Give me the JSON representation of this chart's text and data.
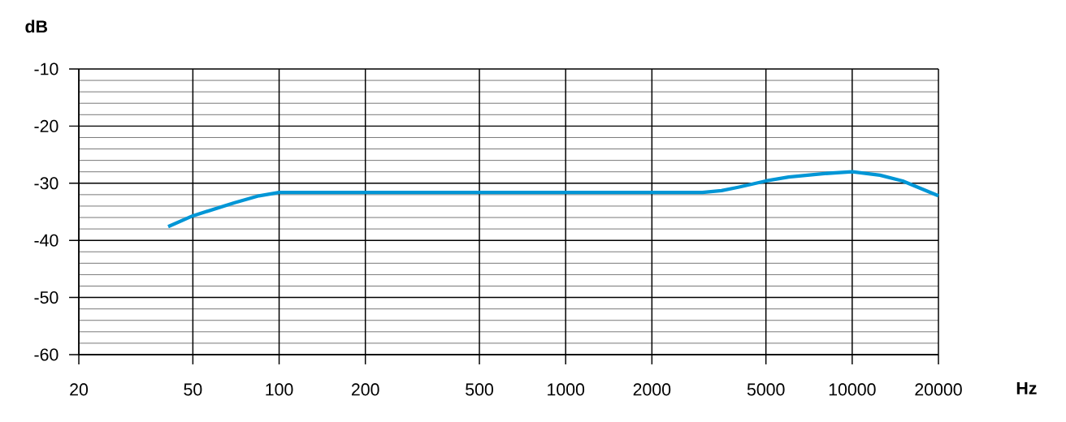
{
  "chart_data": {
    "type": "line",
    "xlabel": "Hz",
    "ylabel": "dB",
    "x": [
      41,
      50,
      70,
      85,
      100,
      3000,
      3500,
      4000,
      5000,
      6000,
      8000,
      10000,
      12500,
      15000,
      20000
    ],
    "series": [
      {
        "color": "#0096d6",
        "values": [
          -37.6,
          -35.7,
          -33.4,
          -32.2,
          -31.6,
          -31.6,
          -31.3,
          -30.7,
          -29.6,
          -28.9,
          -28.3,
          -28.0,
          -28.6,
          -29.6,
          -32.2
        ]
      }
    ],
    "xlim": [
      20,
      20000
    ],
    "ylim": [
      -60,
      -10
    ],
    "xticks": [
      20,
      50,
      100,
      200,
      500,
      1000,
      2000,
      5000,
      10000,
      20000
    ],
    "yticks": [
      -60,
      -50,
      -40,
      -30,
      -20,
      -10
    ],
    "log": "x",
    "grid": true,
    "marker": "none",
    "line_style": "solid"
  }
}
